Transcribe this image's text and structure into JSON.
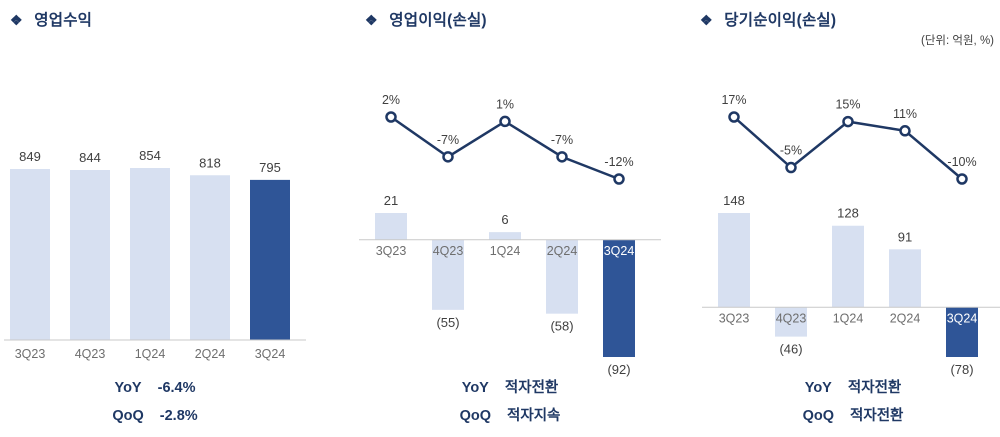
{
  "bullet": "❖",
  "unit_label": "(단위: 억원, %)",
  "colors": {
    "accent_navy": "#1f3864",
    "bar_light": "#d7e0f1",
    "bar_dark": "#2f5597",
    "line": "#1f3864",
    "axis": "#c9c9c9",
    "value_text": "#404040",
    "category_text": "#6e6e6e",
    "highlight_category_text": "#ffffff"
  },
  "chart_data": [
    {
      "type": "bar",
      "title": "영업수익",
      "categories": [
        "3Q23",
        "4Q23",
        "1Q24",
        "2Q24",
        "3Q24"
      ],
      "values": [
        849,
        844,
        854,
        818,
        795
      ],
      "value_labels": [
        "849",
        "844",
        "854",
        "818",
        "795"
      ],
      "highlight_index": 4,
      "ylim": [
        0,
        900
      ],
      "legend": "off",
      "grid": "off",
      "footer": [
        {
          "label": "YoY",
          "value": "-6.4%"
        },
        {
          "label": "QoQ",
          "value": "-2.8%"
        }
      ]
    },
    {
      "type": "bar+line",
      "title": "영업이익(손실)",
      "categories": [
        "3Q23",
        "4Q23",
        "1Q24",
        "2Q24",
        "3Q24"
      ],
      "series": [
        {
          "name": "operating-profit-bars",
          "type": "bar",
          "values": [
            21,
            -55,
            6,
            -58,
            -92
          ],
          "labels": [
            "21",
            "(55)",
            "6",
            "(58)",
            "(92)"
          ]
        },
        {
          "name": "operating-margin-line",
          "type": "line",
          "values": [
            2,
            -7,
            1,
            -7,
            -12
          ],
          "labels": [
            "2%",
            "-7%",
            "1%",
            "-7%",
            "-12%"
          ]
        }
      ],
      "highlight_index": 4,
      "legend": "off",
      "grid": "off",
      "footer": [
        {
          "label": "YoY",
          "value": "적자전환"
        },
        {
          "label": "QoQ",
          "value": "적자지속"
        }
      ]
    },
    {
      "type": "bar+line",
      "title": "당기순이익(손실)",
      "categories": [
        "3Q23",
        "4Q23",
        "1Q24",
        "2Q24",
        "3Q24"
      ],
      "series": [
        {
          "name": "net-income-bars",
          "type": "bar",
          "values": [
            148,
            -46,
            128,
            91,
            -78
          ],
          "labels": [
            "148",
            "(46)",
            "128",
            "91",
            "(78)"
          ]
        },
        {
          "name": "net-margin-line",
          "type": "line",
          "values": [
            17,
            -5,
            15,
            11,
            -10
          ],
          "labels": [
            "17%",
            "-5%",
            "15%",
            "11%",
            "-10%"
          ]
        }
      ],
      "highlight_index": 4,
      "legend": "off",
      "grid": "off",
      "footer": [
        {
          "label": "YoY",
          "value": "적자전환"
        },
        {
          "label": "QoQ",
          "value": "적자전환"
        }
      ]
    }
  ]
}
